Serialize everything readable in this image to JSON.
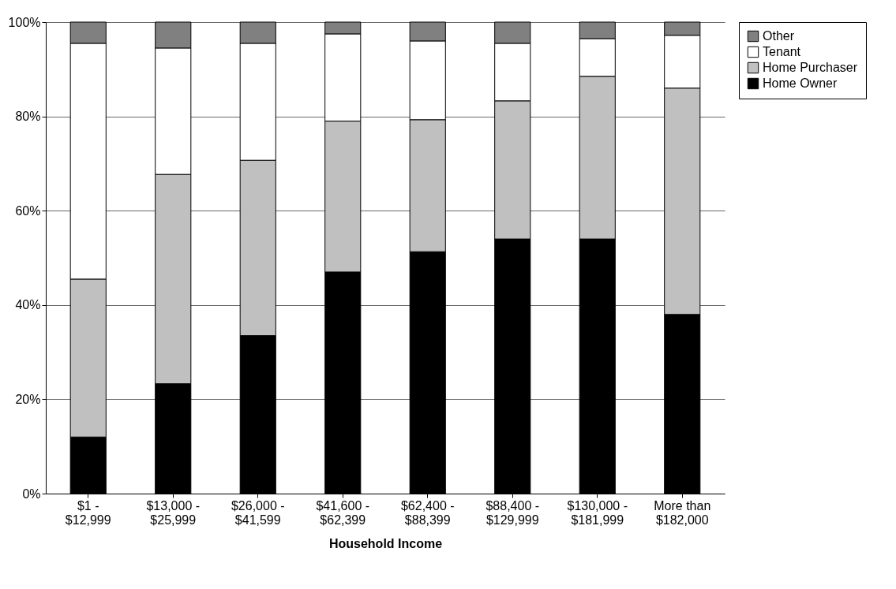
{
  "chart_data": {
    "type": "bar",
    "stacked": true,
    "xlabel": "Household Income",
    "categories": [
      "$1 -\n$12,999",
      "$13,000 -\n$25,999",
      "$26,000 -\n$41,599",
      "$41,600 -\n$62,399",
      "$62,400 -\n$88,399",
      "$88,400 -\n$129,999",
      "$130,000 -\n$181,999",
      "More than\n$182,000"
    ],
    "series": [
      {
        "name": "Home Owner",
        "color": "#000000",
        "values": [
          12,
          23.3,
          33.5,
          47,
          51.3,
          54,
          54,
          38
        ]
      },
      {
        "name": "Home Purchaser",
        "color": "#c0c0c0",
        "values": [
          33.5,
          44.4,
          37.2,
          32,
          28,
          29.3,
          34.5,
          48
        ]
      },
      {
        "name": "Tenant",
        "color": "#ffffff",
        "values": [
          50,
          26.8,
          24.8,
          18.5,
          16.7,
          12.2,
          8,
          11.2
        ]
      },
      {
        "name": "Other",
        "color": "#808080",
        "values": [
          4.5,
          5.5,
          4.5,
          2.5,
          4,
          4.5,
          3.5,
          2.8
        ]
      }
    ],
    "ylim": [
      0,
      100
    ],
    "yticks": [
      {
        "value": 0,
        "label": "0%"
      },
      {
        "value": 20,
        "label": "20%"
      },
      {
        "value": 40,
        "label": "40%"
      },
      {
        "value": 60,
        "label": "60%"
      },
      {
        "value": 80,
        "label": "80%"
      },
      {
        "value": 100,
        "label": "100%"
      }
    ],
    "grid": "y",
    "legend": "right"
  }
}
